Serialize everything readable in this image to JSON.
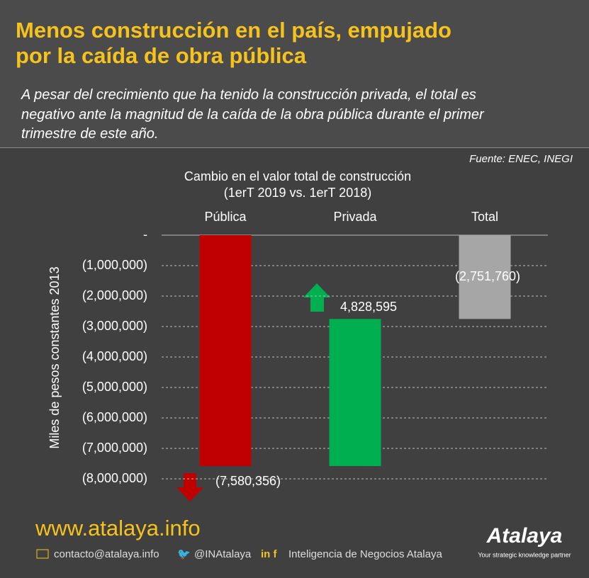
{
  "header": {
    "title": [
      "Menos construcción en el país, empujado",
      "por la caída de obra pública"
    ],
    "subtitle": [
      "A pesar del crecimiento que ha tenido la construcción privada, el total es",
      "negativo ante la magnitud de la caída de la obra pública durante el primer",
      "trimestre de este año."
    ]
  },
  "chart_data": {
    "type": "waterfall",
    "title": [
      "Cambio en el valor total de construcción",
      "(1erT 2019 vs. 1erT 2018)"
    ],
    "source": "Fuente: ENEC, INEGI",
    "y_label": "Miles de pesos constantes 2013",
    "categories": [
      "Pública",
      "Privada",
      "Total"
    ],
    "values": [
      -7580356,
      4828595,
      -2751760
    ],
    "value_labels": [
      "(7,580,356)",
      "4,828,595",
      "(2,751,760)"
    ],
    "colors": [
      "#c00000",
      "#00b050",
      "#a6a6a6"
    ],
    "ylim": [
      -8000000,
      0
    ],
    "yticks": [
      {
        "value": 0,
        "label": "-"
      },
      {
        "value": -1000000,
        "label": "(1,000,000)"
      },
      {
        "value": -2000000,
        "label": "(2,000,000)"
      },
      {
        "value": -3000000,
        "label": "(3,000,000)"
      },
      {
        "value": -4000000,
        "label": "(4,000,000)"
      },
      {
        "value": -5000000,
        "label": "(5,000,000)"
      },
      {
        "value": -6000000,
        "label": "(6,000,000)"
      },
      {
        "value": -7000000,
        "label": "(7,000,000)"
      },
      {
        "value": -8000000,
        "label": "(8,000,000)"
      }
    ],
    "grid": true
  },
  "footer": {
    "website": "www.atalaya.info",
    "email": "contacto@atalaya.info",
    "twitter": "@INAtalaya",
    "social": "Inteligencia de Negocios Atalaya",
    "logo": "Atalaya",
    "tagline": "Your strategic knowledge partner"
  }
}
